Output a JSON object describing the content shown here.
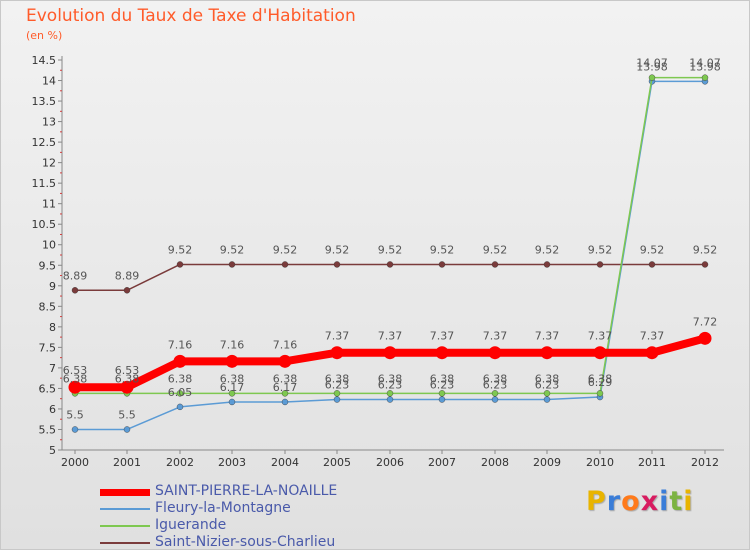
{
  "chart_data": {
    "type": "line",
    "title": "Evolution du Taux de Taxe d'Habitation",
    "subtitle": "(en %)",
    "xlabel": "",
    "ylabel": "",
    "categories": [
      "2000",
      "2001",
      "2002",
      "2003",
      "2004",
      "2005",
      "2006",
      "2007",
      "2008",
      "2009",
      "2010",
      "2011",
      "2012"
    ],
    "ylim": [
      5,
      14.5
    ],
    "yticks": [
      "5",
      "5.5",
      "6",
      "6.5",
      "7",
      "7.5",
      "8",
      "8.5",
      "9",
      "9.5",
      "10",
      "10.5",
      "11",
      "11.5",
      "12",
      "12.5",
      "13",
      "13.5",
      "14",
      "14.5"
    ],
    "series": [
      {
        "name": "SAINT-PIERRE-LA-NOAILLE",
        "color": "#ff0000",
        "values": [
          6.53,
          6.53,
          7.16,
          7.16,
          7.16,
          7.37,
          7.37,
          7.37,
          7.37,
          7.37,
          7.37,
          7.37,
          7.72
        ],
        "labels": [
          "6.53",
          "6.53",
          "7.16",
          "7.16",
          "7.16",
          "7.37",
          "7.37",
          "7.37",
          "7.37",
          "7.37",
          "7.37",
          "7.37",
          "7.72"
        ]
      },
      {
        "name": "Fleury-la-Montagne",
        "color": "#5b9bd5",
        "values": [
          5.5,
          5.5,
          6.05,
          6.17,
          6.17,
          6.23,
          6.23,
          6.23,
          6.23,
          6.23,
          6.29,
          13.98,
          13.98
        ],
        "labels": [
          "5.5",
          "5.5",
          "6.05",
          "6.17",
          "6.17",
          "6.23",
          "6.23",
          "6.23",
          "6.23",
          "6.23",
          "6.29",
          "13.98",
          "13.98"
        ]
      },
      {
        "name": "Iguerande",
        "color": "#7ec850",
        "values": [
          6.38,
          6.38,
          6.38,
          6.38,
          6.38,
          6.38,
          6.38,
          6.38,
          6.38,
          6.38,
          6.38,
          14.07,
          14.07
        ],
        "labels": [
          "6.38",
          "6.38",
          "6.38",
          "6.38",
          "6.38",
          "6.38",
          "6.38",
          "6.38",
          "6.38",
          "6.38",
          "6.38",
          "14.07",
          "14.07"
        ]
      },
      {
        "name": "Saint-Nizier-sous-Charlieu",
        "color": "#7a3b3b",
        "values": [
          8.89,
          8.89,
          9.52,
          9.52,
          9.52,
          9.52,
          9.52,
          9.52,
          9.52,
          9.52,
          9.52,
          9.52,
          9.52
        ],
        "labels": [
          "8.89",
          "8.89",
          "9.52",
          "9.52",
          "9.52",
          "9.52",
          "9.52",
          "9.52",
          "9.52",
          "9.52",
          "9.52",
          "9.52",
          "9.52"
        ]
      }
    ],
    "legend_position": "bottom-left"
  },
  "logo": {
    "letters": [
      "P",
      "r",
      "o",
      "x",
      "i",
      "t",
      "i"
    ],
    "colors": [
      "#e8b400",
      "#3a7dd8",
      "#ff7a1a",
      "#d81b60",
      "#3a7dd8",
      "#7cb342",
      "#e8b400"
    ]
  }
}
